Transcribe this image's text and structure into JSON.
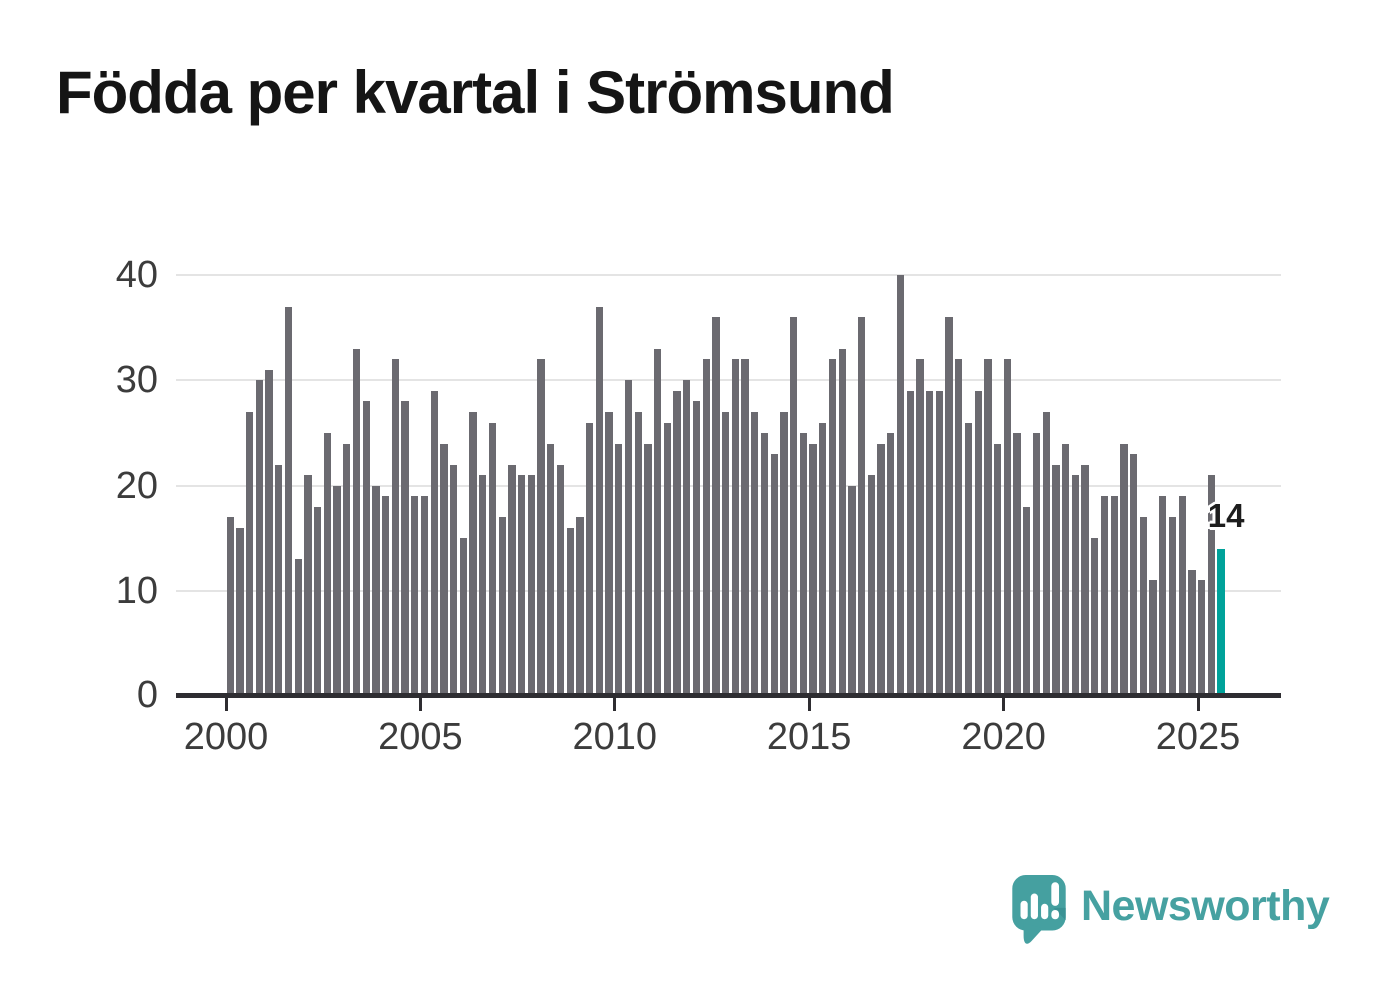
{
  "title": "Födda per kvartal i Strömsund",
  "chart_data": {
    "type": "bar",
    "title": "Födda per kvartal i Strömsund",
    "xlabel": "",
    "ylabel": "",
    "ylim": [
      0,
      40
    ],
    "y_ticks": [
      "0",
      "10",
      "20",
      "30",
      "40"
    ],
    "x_tick_labels": [
      "2000",
      "2005",
      "2010",
      "2015",
      "2020",
      "2025"
    ],
    "grid": "horizontal",
    "legend": "none",
    "bar_color": "#6b6a70",
    "axis_color": "#2e2d31",
    "categories": [
      "2000Q1",
      "2000Q2",
      "2000Q3",
      "2000Q4",
      "2001Q1",
      "2001Q2",
      "2001Q3",
      "2001Q4",
      "2002Q1",
      "2002Q2",
      "2002Q3",
      "2002Q4",
      "2003Q1",
      "2003Q2",
      "2003Q3",
      "2003Q4",
      "2004Q1",
      "2004Q2",
      "2004Q3",
      "2004Q4",
      "2005Q1",
      "2005Q2",
      "2005Q3",
      "2005Q4",
      "2006Q1",
      "2006Q2",
      "2006Q3",
      "2006Q4",
      "2007Q1",
      "2007Q2",
      "2007Q3",
      "2007Q4",
      "2008Q1",
      "2008Q2",
      "2008Q3",
      "2008Q4",
      "2009Q1",
      "2009Q2",
      "2009Q3",
      "2009Q4",
      "2010Q1",
      "2010Q2",
      "2010Q3",
      "2010Q4",
      "2011Q1",
      "2011Q2",
      "2011Q3",
      "2011Q4",
      "2012Q1",
      "2012Q2",
      "2012Q3",
      "2012Q4",
      "2013Q1",
      "2013Q2",
      "2013Q3",
      "2013Q4",
      "2014Q1",
      "2014Q2",
      "2014Q3",
      "2014Q4",
      "2015Q1",
      "2015Q2",
      "2015Q3",
      "2015Q4",
      "2016Q1",
      "2016Q2",
      "2016Q3",
      "2016Q4",
      "2017Q1",
      "2017Q2",
      "2017Q3",
      "2017Q4",
      "2018Q1",
      "2018Q2",
      "2018Q3",
      "2018Q4",
      "2019Q1",
      "2019Q2",
      "2019Q3",
      "2019Q4",
      "2020Q1",
      "2020Q2",
      "2020Q3",
      "2020Q4",
      "2021Q1",
      "2021Q2",
      "2021Q3",
      "2021Q4",
      "2022Q1",
      "2022Q2",
      "2022Q3",
      "2022Q4",
      "2023Q1",
      "2023Q2",
      "2023Q3",
      "2023Q4",
      "2024Q1",
      "2024Q2",
      "2024Q3",
      "2024Q4",
      "2025Q1",
      "2025Q2",
      "2025Q3"
    ],
    "values": [
      17,
      16,
      27,
      30,
      31,
      22,
      37,
      13,
      21,
      18,
      25,
      20,
      24,
      33,
      28,
      20,
      19,
      32,
      28,
      19,
      19,
      29,
      24,
      22,
      15,
      27,
      21,
      26,
      17,
      22,
      21,
      21,
      32,
      24,
      22,
      16,
      17,
      26,
      37,
      27,
      24,
      30,
      27,
      24,
      33,
      26,
      29,
      30,
      28,
      32,
      36,
      27,
      32,
      32,
      27,
      25,
      23,
      27,
      36,
      25,
      24,
      26,
      32,
      33,
      20,
      36,
      21,
      24,
      25,
      40,
      29,
      32,
      29,
      29,
      36,
      32,
      26,
      29,
      32,
      24,
      32,
      25,
      18,
      25,
      27,
      22,
      24,
      21,
      22,
      15,
      19,
      19,
      24,
      23,
      17,
      11,
      19,
      17,
      19,
      12,
      11,
      21,
      14
    ],
    "highlight": {
      "index": 102,
      "color": "#00a29a",
      "label": "14"
    }
  },
  "logo": {
    "text": "Newsworthy",
    "color": "#46a1a1",
    "icon": "speech-bubble-chart-icon"
  }
}
